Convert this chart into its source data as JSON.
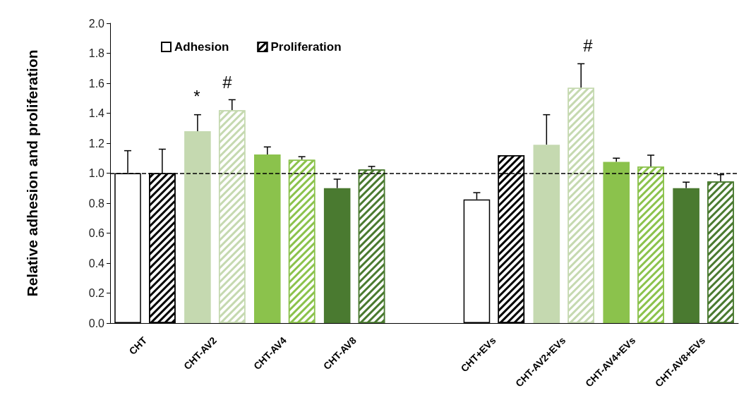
{
  "chart_data": {
    "type": "bar",
    "ylabel": "Relative adhesion and proliferation",
    "categories": [
      "CHT",
      "CHT-AV2",
      "CHT-AV4",
      "CHT-AV8",
      null,
      "CHT+EVs",
      "CHT-AV2+EVs",
      "CHT-AV4+EVs",
      "CHT-AV8+EVs"
    ],
    "series": [
      {
        "name": "Adhesion",
        "color": "#ffffff",
        "colors": [
          "#ffffff",
          "#c5d9b0",
          "#8bc24c",
          "#4a7a30",
          null,
          "#ffffff",
          "#c5d9b0",
          "#8bc24c",
          "#4a7a30"
        ],
        "values": [
          1.0,
          1.28,
          1.125,
          0.9,
          null,
          0.825,
          1.19,
          1.075,
          0.9
        ],
        "errors": [
          [
            1.0,
            1.15
          ],
          [
            1.28,
            1.39
          ],
          [
            1.125,
            1.175
          ],
          [
            0.9,
            0.96
          ],
          null,
          [
            0.825,
            0.87
          ],
          [
            1.19,
            1.39
          ],
          [
            1.075,
            1.1
          ],
          [
            0.9,
            0.94
          ]
        ]
      },
      {
        "name": "Proliferation",
        "color": "#000000",
        "colors": [
          "#000000",
          "#c5d9b0",
          "#8bc24c",
          "#4a7a30",
          null,
          "#000000",
          "#c5d9b0",
          "#8bc24c",
          "#4a7a30"
        ],
        "values": [
          1.0,
          1.42,
          1.09,
          1.025,
          null,
          1.12,
          1.57,
          1.045,
          0.945
        ],
        "errors": [
          [
            1.0,
            1.16
          ],
          [
            1.42,
            1.49
          ],
          [
            1.09,
            1.11
          ],
          [
            1.025,
            1.045
          ],
          null,
          null,
          [
            1.57,
            1.73
          ],
          [
            1.045,
            1.12
          ],
          [
            0.945,
            0.99
          ]
        ]
      }
    ],
    "ylim": [
      0,
      2
    ],
    "yticks": [
      {
        "value": 0,
        "label": "0.0"
      },
      {
        "value": 0.2,
        "label": "0.2"
      },
      {
        "value": 0.4,
        "label": "0.4"
      },
      {
        "value": 0.6,
        "label": "0.6"
      },
      {
        "value": 0.8,
        "label": "0.8"
      },
      {
        "value": 1,
        "label": "1.0"
      },
      {
        "value": 1.2,
        "label": "1.2"
      },
      {
        "value": 1.4,
        "label": "1.4"
      },
      {
        "value": 1.6,
        "label": "1.6"
      },
      {
        "value": 1.8,
        "label": "1.8"
      },
      {
        "value": 2,
        "label": "2.0"
      }
    ],
    "ref_lines": [
      {
        "axis": "y",
        "value": 1,
        "line_style": "dashed",
        "color": "#000000"
      }
    ],
    "annotations": [
      "*",
      "#",
      "#"
    ],
    "legend": "top left",
    "grid": false
  }
}
